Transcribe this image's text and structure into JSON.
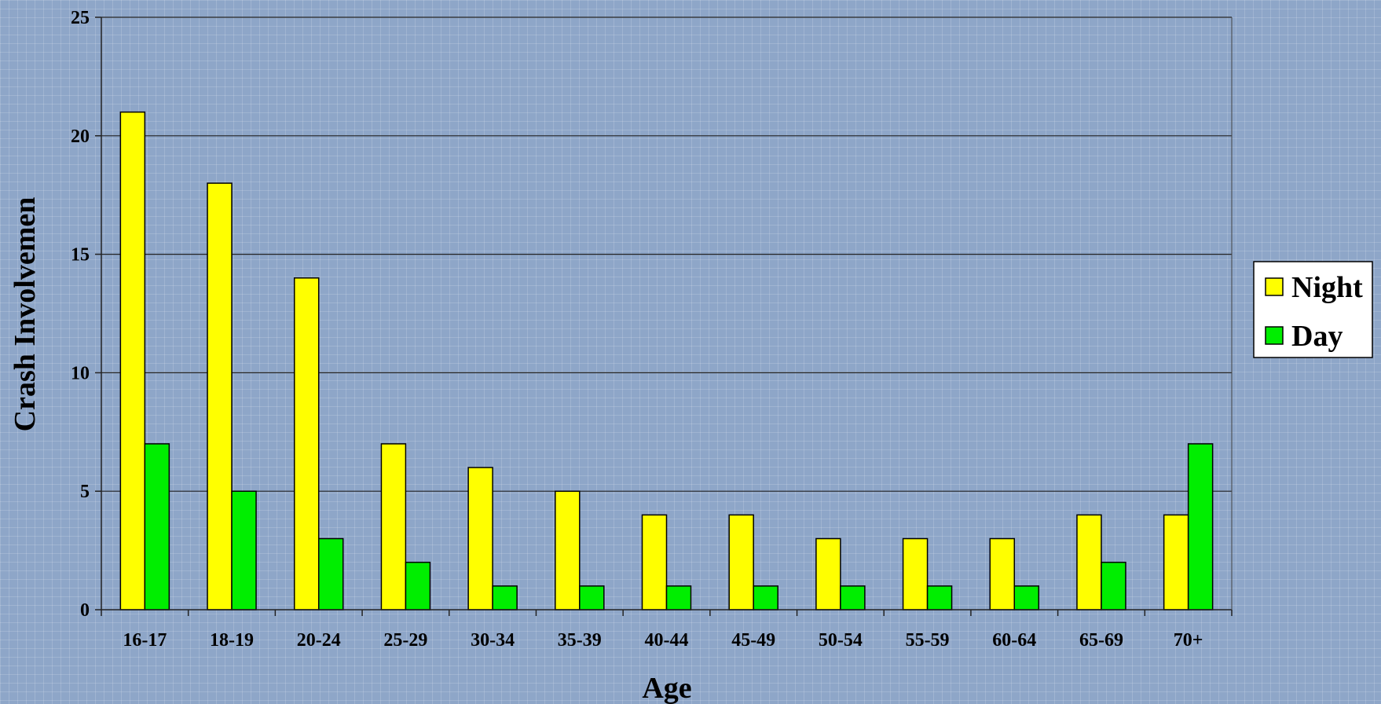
{
  "chart_data": {
    "type": "bar",
    "title": "",
    "xlabel": "Age",
    "ylabel": "Crash Involvemen",
    "categories": [
      "16-17",
      "18-19",
      "20-24",
      "25-29",
      "30-34",
      "35-39",
      "40-44",
      "45-49",
      "50-54",
      "55-59",
      "60-64",
      "65-69",
      "70+"
    ],
    "series": [
      {
        "name": "Night",
        "color": "#ffff00",
        "values": [
          21,
          18,
          14,
          7,
          6,
          5,
          4,
          4,
          3,
          3,
          3,
          4,
          4
        ]
      },
      {
        "name": "Day",
        "color": "#00ee00",
        "values": [
          7,
          5,
          3,
          2,
          1,
          1,
          1,
          1,
          1,
          1,
          1,
          2,
          7
        ]
      }
    ],
    "ylim": [
      0,
      25
    ],
    "yticks": [
      0,
      5,
      10,
      15,
      20,
      25
    ],
    "grid": true,
    "legend": "right"
  }
}
